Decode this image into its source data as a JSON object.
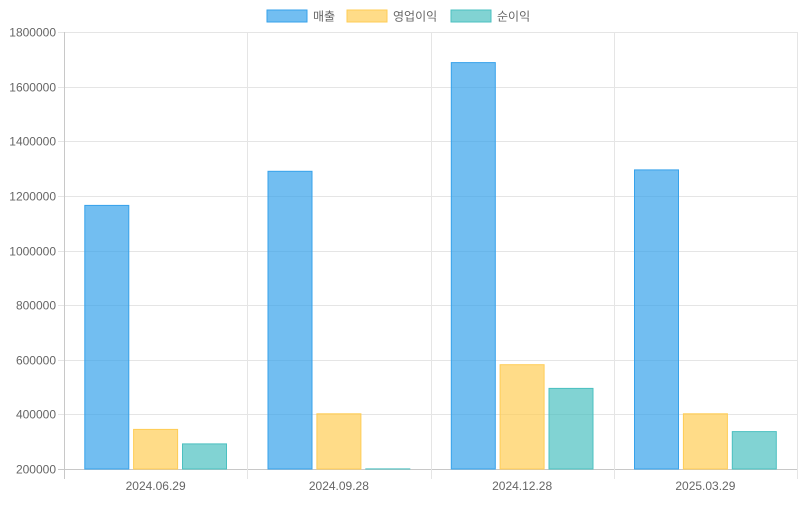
{
  "chart_data": {
    "type": "bar",
    "categories": [
      "2024.06.29",
      "2024.09.28",
      "2024.12.28",
      "2025.03.29"
    ],
    "series": [
      {
        "name": "매출",
        "values": [
          1165000,
          1290000,
          1688000,
          1295000
        ],
        "fill": "#36a2eb",
        "stroke": "#36a2eb"
      },
      {
        "name": "영업이익",
        "values": [
          345000,
          402000,
          582000,
          402000
        ],
        "fill": "#ffcd56",
        "stroke": "#ffcd56"
      },
      {
        "name": "순이익",
        "values": [
          292000,
          200500,
          495000,
          337000
        ],
        "fill": "#4bc0c0",
        "stroke": "#4bc0c0"
      }
    ],
    "ylim": [
      200000,
      1800000
    ],
    "yticks": [
      200000,
      400000,
      600000,
      800000,
      1000000,
      1200000,
      1400000,
      1600000,
      1800000
    ],
    "grid": true,
    "legend_position": "top-center",
    "title": "",
    "xlabel": "",
    "ylabel": ""
  }
}
